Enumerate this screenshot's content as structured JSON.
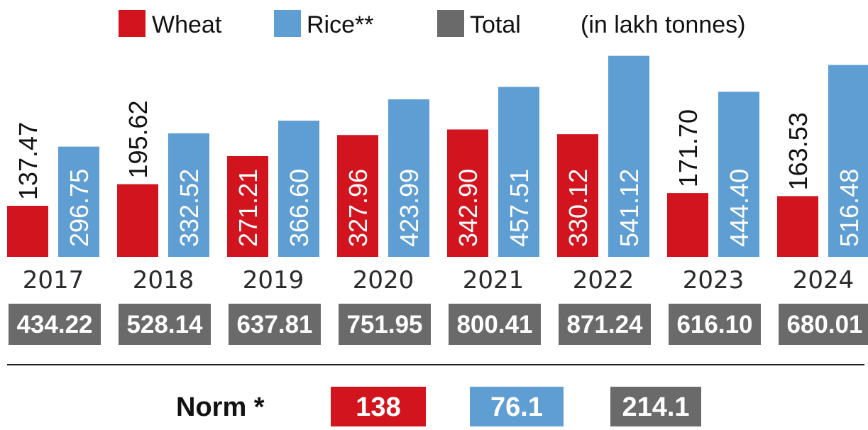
{
  "colors": {
    "wheat": "#d2141e",
    "rice": "#5f9ed2",
    "total": "#6a6a6a",
    "rule": "#222222"
  },
  "legend": {
    "items": [
      {
        "key": "wheat",
        "label": "Wheat"
      },
      {
        "key": "rice",
        "label": "Rice**"
      },
      {
        "key": "total",
        "label": "Total"
      }
    ],
    "unit_note": "(in lakh tonnes)"
  },
  "chart_data": {
    "type": "bar",
    "categories": [
      "2017",
      "2018",
      "2019",
      "2020",
      "2021",
      "2022",
      "2023",
      "2024"
    ],
    "series": [
      {
        "name": "Wheat",
        "key": "wheat",
        "values": [
          137.47,
          195.62,
          271.21,
          327.96,
          342.9,
          330.12,
          171.7,
          163.53
        ],
        "labels": [
          "137.47",
          "195.62",
          "271.21",
          "327.96",
          "342.90",
          "330.12",
          "171.70",
          "163.53"
        ]
      },
      {
        "name": "Rice**",
        "key": "rice",
        "values": [
          296.75,
          332.52,
          366.6,
          423.99,
          457.51,
          541.12,
          444.4,
          516.48
        ],
        "labels": [
          "296.75",
          "332.52",
          "366.60",
          "423.99",
          "457.51",
          "541.12",
          "444.40",
          "516.48"
        ]
      }
    ],
    "totals": [
      "434.22",
      "528.14",
      "637.81",
      "751.95",
      "800.41",
      "871.24",
      "616.10",
      "680.01"
    ],
    "ylim": [
      0,
      560
    ],
    "legend_position": "top",
    "grid": false
  },
  "norm": {
    "label": "Norm *",
    "wheat": "138",
    "rice": "76.1",
    "total": "214.1"
  }
}
